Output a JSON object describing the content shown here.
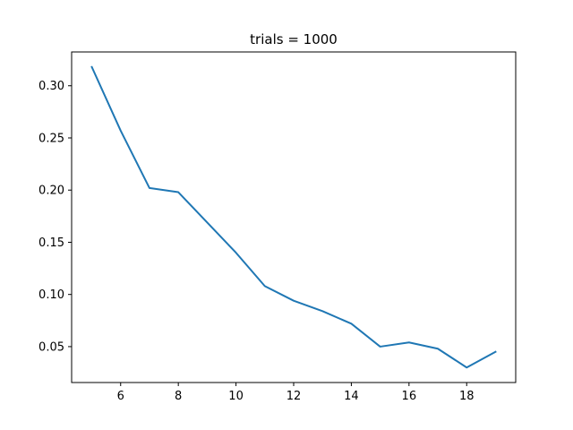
{
  "chart_data": {
    "type": "line",
    "title": "trials = 1000",
    "xlabel": "",
    "ylabel": "",
    "xlim": [
      4.3,
      19.7
    ],
    "ylim": [
      0.0156,
      0.3324
    ],
    "grid": false,
    "xticks": [
      6,
      8,
      10,
      12,
      14,
      16,
      18
    ],
    "xtick_labels": [
      "6",
      "8",
      "10",
      "12",
      "14",
      "16",
      "18"
    ],
    "yticks": [
      0.05,
      0.1,
      0.15,
      0.2,
      0.25,
      0.3
    ],
    "ytick_labels": [
      "0.05",
      "0.10",
      "0.15",
      "0.20",
      "0.25",
      "0.30"
    ],
    "series": [
      {
        "color": "#1f77b4",
        "x": [
          5,
          6,
          7,
          8,
          9,
          10,
          11,
          12,
          13,
          14,
          15,
          16,
          17,
          18,
          19
        ],
        "y": [
          0.318,
          0.257,
          0.202,
          0.198,
          0.169,
          0.14,
          0.108,
          0.094,
          0.084,
          0.072,
          0.05,
          0.054,
          0.048,
          0.03,
          0.045
        ]
      }
    ]
  }
}
